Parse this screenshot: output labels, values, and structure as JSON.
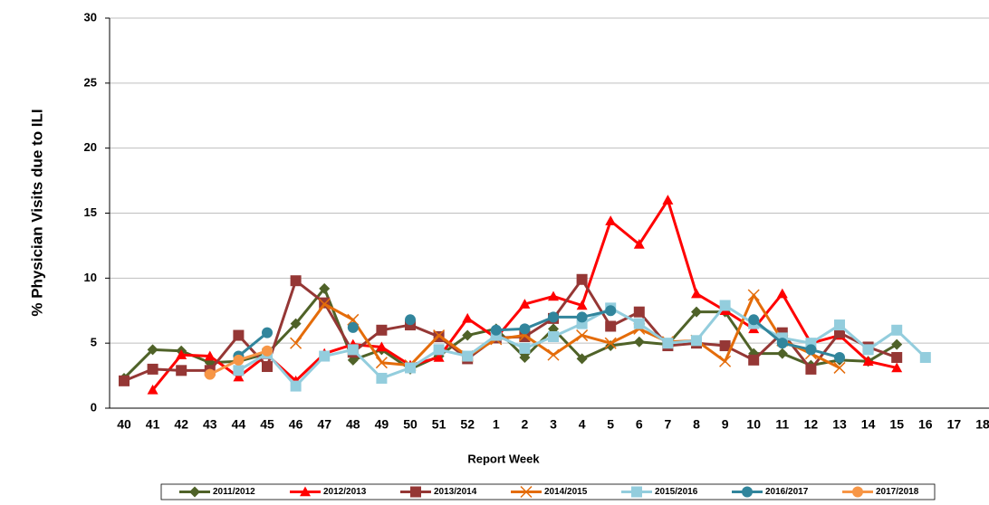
{
  "chart_data": {
    "type": "line",
    "x_label": "Report Week",
    "y_label": "% Physician Visits due to ILI",
    "categories": [
      "40",
      "41",
      "42",
      "43",
      "44",
      "45",
      "46",
      "47",
      "48",
      "49",
      "50",
      "51",
      "52",
      "1",
      "2",
      "3",
      "4",
      "5",
      "6",
      "7",
      "8",
      "9",
      "10",
      "11",
      "12",
      "13",
      "14",
      "15",
      "16",
      "17",
      "18"
    ],
    "ylim": [
      0,
      30
    ],
    "yticks": [
      0,
      5,
      10,
      15,
      20,
      25,
      30
    ],
    "grid": true,
    "series": [
      {
        "name": "2011/2012",
        "color": "#4f6228",
        "marker": "diamond",
        "values": [
          2.3,
          4.5,
          4.4,
          3.5,
          3.6,
          4.2,
          6.5,
          9.2,
          3.7,
          4.5,
          3.0,
          4.0,
          5.6,
          6.1,
          3.9,
          6.1,
          3.8,
          4.8,
          5.1,
          4.9,
          7.4,
          7.4,
          4.2,
          4.2,
          3.3,
          3.7,
          3.6,
          4.9,
          null,
          null,
          null
        ]
      },
      {
        "name": "2012/2013",
        "color": "#ff0000",
        "marker": "triangle",
        "values": [
          null,
          1.4,
          4.1,
          4.0,
          2.4,
          4.1,
          2.1,
          4.2,
          4.9,
          4.7,
          3.3,
          3.9,
          6.9,
          5.4,
          8.0,
          8.6,
          7.9,
          14.4,
          12.6,
          16.0,
          8.8,
          7.5,
          6.1,
          8.8,
          5.0,
          5.6,
          3.6,
          3.1,
          null,
          null,
          null
        ]
      },
      {
        "name": "2013/2014",
        "color": "#953735",
        "marker": "square",
        "values": [
          2.1,
          3.0,
          2.9,
          2.9,
          5.6,
          3.2,
          9.8,
          8.1,
          4.3,
          6.0,
          6.4,
          5.5,
          3.8,
          5.4,
          5.5,
          6.9,
          9.9,
          6.3,
          7.4,
          4.8,
          5.0,
          4.8,
          3.7,
          5.8,
          3.0,
          5.8,
          4.7,
          3.9,
          null,
          null,
          null
        ]
      },
      {
        "name": "2014/2015",
        "color": "#e46c0a",
        "marker": "x",
        "values": [
          null,
          null,
          null,
          null,
          null,
          null,
          5.0,
          8.0,
          6.8,
          3.5,
          3.3,
          5.6,
          4.0,
          5.3,
          5.6,
          4.1,
          5.6,
          5.0,
          6.1,
          5.1,
          5.2,
          3.6,
          8.7,
          5.2,
          4.2,
          3.1,
          null,
          null,
          null,
          null,
          null
        ]
      },
      {
        "name": "2015/2016",
        "color": "#93cddd",
        "marker": "square",
        "values": [
          null,
          null,
          null,
          null,
          2.9,
          4.2,
          1.7,
          4.0,
          4.5,
          2.3,
          3.1,
          4.5,
          4.0,
          5.6,
          4.6,
          5.5,
          6.5,
          7.7,
          6.5,
          5.0,
          5.2,
          7.9,
          6.5,
          5.4,
          5.0,
          6.4,
          4.5,
          6.0,
          3.9,
          null,
          null
        ]
      },
      {
        "name": "2016/2017",
        "color": "#31859c",
        "marker": "circle",
        "values": [
          null,
          null,
          null,
          null,
          4.0,
          5.8,
          null,
          null,
          6.2,
          null,
          6.8,
          null,
          null,
          6.0,
          6.1,
          7.0,
          7.0,
          7.5,
          null,
          null,
          null,
          null,
          6.8,
          5.0,
          4.5,
          3.9,
          null,
          null,
          null,
          null,
          null
        ]
      },
      {
        "name": "2017/2018",
        "color": "#f79646",
        "marker": "circle",
        "values": [
          null,
          null,
          null,
          2.6,
          3.7,
          4.4,
          null,
          null,
          null,
          null,
          null,
          null,
          null,
          null,
          null,
          null,
          null,
          null,
          null,
          null,
          null,
          null,
          null,
          null,
          null,
          null,
          null,
          null,
          null,
          null,
          null
        ]
      }
    ]
  }
}
